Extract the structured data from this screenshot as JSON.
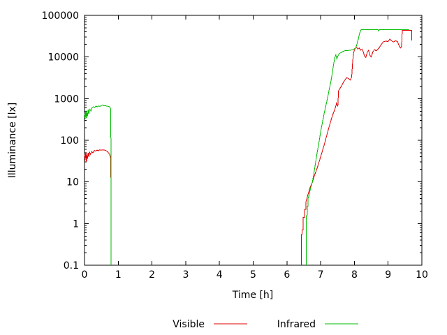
{
  "chart_data": {
    "type": "line",
    "title": "",
    "xlabel": "Time [h]",
    "ylabel": "Illuminance [lx]",
    "xlim": [
      0,
      10
    ],
    "ylim": [
      0.1,
      100000
    ],
    "yscale": "log",
    "grid": false,
    "legend_position": "bottom-center",
    "x_ticks": [
      0,
      1,
      2,
      3,
      4,
      5,
      6,
      7,
      8,
      9,
      10
    ],
    "x_tick_labels": [
      "0",
      "1",
      "2",
      "3",
      "4",
      "5",
      "6",
      "7",
      "8",
      "9",
      "10"
    ],
    "y_ticks": [
      0.1,
      1,
      10,
      100,
      1000,
      10000,
      100000
    ],
    "y_tick_labels": [
      "0.1",
      "1",
      "10",
      "100",
      "1000",
      "10000",
      "100000"
    ],
    "axis_color": "#000000",
    "series": [
      {
        "name": "Visible",
        "color": "#dd0000",
        "segments": [
          [
            [
              0,
              45
            ],
            [
              0.02,
              33
            ],
            [
              0.04,
              52
            ],
            [
              0.055,
              30
            ],
            [
              0.07,
              48
            ],
            [
              0.09,
              36
            ],
            [
              0.11,
              50
            ],
            [
              0.13,
              40
            ],
            [
              0.15,
              52
            ],
            [
              0.18,
              46
            ],
            [
              0.21,
              54
            ],
            [
              0.25,
              50
            ],
            [
              0.29,
              57
            ],
            [
              0.33,
              55
            ],
            [
              0.37,
              58
            ],
            [
              0.41,
              56
            ],
            [
              0.45,
              59
            ],
            [
              0.5,
              58
            ],
            [
              0.55,
              59
            ],
            [
              0.6,
              58
            ],
            [
              0.64,
              56
            ],
            [
              0.68,
              54
            ],
            [
              0.71,
              50
            ],
            [
              0.74,
              47
            ],
            [
              0.76,
              42
            ],
            [
              0.78,
              36
            ],
            [
              0.787,
              0.095
            ]
          ],
          [
            [
              6.43,
              0.095
            ],
            [
              6.43,
              0.55
            ],
            [
              6.45,
              0.55
            ],
            [
              6.45,
              0.7
            ],
            [
              6.48,
              0.7
            ],
            [
              6.48,
              1.4
            ],
            [
              6.52,
              1.4
            ],
            [
              6.52,
              2.2
            ],
            [
              6.56,
              2.2
            ],
            [
              6.56,
              3.2
            ],
            [
              6.6,
              4.2
            ],
            [
              6.64,
              5.5
            ],
            [
              6.68,
              7
            ],
            [
              6.72,
              8.5
            ],
            [
              6.76,
              10
            ],
            [
              6.8,
              13
            ],
            [
              6.85,
              17
            ],
            [
              6.9,
              22
            ],
            [
              6.95,
              30
            ],
            [
              7.0,
              40
            ],
            [
              7.05,
              55
            ],
            [
              7.1,
              75
            ],
            [
              7.15,
              105
            ],
            [
              7.2,
              150
            ],
            [
              7.25,
              210
            ],
            [
              7.3,
              290
            ],
            [
              7.35,
              390
            ],
            [
              7.4,
              500
            ],
            [
              7.44,
              620
            ],
            [
              7.47,
              780
            ],
            [
              7.49,
              700
            ],
            [
              7.51,
              650
            ],
            [
              7.53,
              1550
            ],
            [
              7.58,
              1800
            ],
            [
              7.63,
              2100
            ],
            [
              7.68,
              2500
            ],
            [
              7.73,
              2900
            ],
            [
              7.78,
              3200
            ],
            [
              7.83,
              3000
            ],
            [
              7.88,
              2800
            ],
            [
              7.92,
              3300
            ],
            [
              7.95,
              8000
            ],
            [
              7.98,
              13000
            ],
            [
              8.02,
              16000
            ],
            [
              8.06,
              17500
            ],
            [
              8.1,
              15500
            ],
            [
              8.14,
              16500
            ],
            [
              8.18,
              14500
            ],
            [
              8.22,
              15500
            ],
            [
              8.26,
              13500
            ],
            [
              8.3,
              10500
            ],
            [
              8.34,
              9800
            ],
            [
              8.38,
              13000
            ],
            [
              8.42,
              14500
            ],
            [
              8.46,
              11000
            ],
            [
              8.5,
              10000
            ],
            [
              8.55,
              13500
            ],
            [
              8.6,
              15000
            ],
            [
              8.65,
              14000
            ],
            [
              8.72,
              16000
            ],
            [
              8.78,
              19000
            ],
            [
              8.85,
              23000
            ],
            [
              8.92,
              24000
            ],
            [
              9.0,
              23500
            ],
            [
              9.05,
              27000
            ],
            [
              9.1,
              24500
            ],
            [
              9.16,
              23000
            ],
            [
              9.22,
              24500
            ],
            [
              9.28,
              23500
            ],
            [
              9.31,
              20000
            ],
            [
              9.34,
              17500
            ],
            [
              9.37,
              16500
            ],
            [
              9.4,
              18000
            ],
            [
              9.42,
              44000
            ],
            [
              9.7,
              44000
            ],
            [
              9.7,
              25000
            ]
          ]
        ]
      },
      {
        "name": "Infrared",
        "color": "#00bb00",
        "segments": [
          [
            [
              0,
              430
            ],
            [
              0.02,
              320
            ],
            [
              0.04,
              520
            ],
            [
              0.055,
              340
            ],
            [
              0.07,
              500
            ],
            [
              0.09,
              380
            ],
            [
              0.11,
              540
            ],
            [
              0.13,
              430
            ],
            [
              0.16,
              560
            ],
            [
              0.19,
              500
            ],
            [
              0.22,
              600
            ],
            [
              0.26,
              640
            ],
            [
              0.3,
              610
            ],
            [
              0.34,
              660
            ],
            [
              0.38,
              640
            ],
            [
              0.42,
              670
            ],
            [
              0.46,
              650
            ],
            [
              0.5,
              690
            ],
            [
              0.54,
              700
            ],
            [
              0.58,
              670
            ],
            [
              0.62,
              680
            ],
            [
              0.66,
              660
            ],
            [
              0.7,
              655
            ],
            [
              0.73,
              645
            ],
            [
              0.76,
              600
            ],
            [
              0.78,
              560
            ],
            [
              0.787,
              0.095
            ]
          ],
          [
            [
              6.57,
              0.095
            ],
            [
              6.57,
              1.5
            ],
            [
              6.6,
              1.6
            ],
            [
              6.6,
              2.6
            ],
            [
              6.63,
              2.6
            ],
            [
              6.63,
              4.0
            ],
            [
              6.66,
              5.0
            ],
            [
              6.7,
              7.0
            ],
            [
              6.73,
              8.5
            ],
            [
              6.76,
              10.5
            ],
            [
              6.8,
              16
            ],
            [
              6.84,
              26
            ],
            [
              6.88,
              42
            ],
            [
              6.92,
              65
            ],
            [
              6.96,
              100
            ],
            [
              7.0,
              160
            ],
            [
              7.05,
              260
            ],
            [
              7.1,
              420
            ],
            [
              7.15,
              650
            ],
            [
              7.2,
              1000
            ],
            [
              7.25,
              1600
            ],
            [
              7.3,
              2500
            ],
            [
              7.34,
              3800
            ],
            [
              7.38,
              6500
            ],
            [
              7.42,
              9500
            ],
            [
              7.45,
              11500
            ],
            [
              7.48,
              9000
            ],
            [
              7.51,
              10500
            ],
            [
              7.55,
              12000
            ],
            [
              7.6,
              12800
            ],
            [
              7.66,
              13500
            ],
            [
              7.72,
              14200
            ],
            [
              7.8,
              14300
            ],
            [
              7.88,
              14600
            ],
            [
              7.96,
              15000
            ],
            [
              8.04,
              16500
            ],
            [
              8.08,
              21000
            ],
            [
              8.12,
              28000
            ],
            [
              8.16,
              38000
            ],
            [
              8.2,
              45500
            ],
            [
              8.7,
              45500
            ],
            [
              8.72,
              42000
            ],
            [
              8.74,
              45500
            ],
            [
              9.62,
              45500
            ]
          ]
        ]
      }
    ]
  },
  "legend": {
    "items": [
      {
        "label": "Visible"
      },
      {
        "label": "Infrared"
      }
    ]
  }
}
